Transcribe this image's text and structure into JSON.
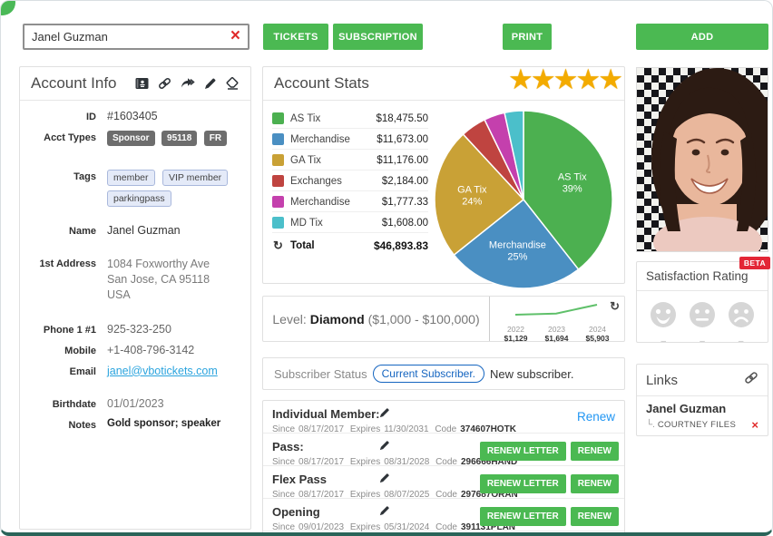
{
  "icons": {
    "star": "★",
    "refresh": "↻",
    "clear": "×",
    "delete": "×",
    "tree": "└."
  },
  "colors": {
    "accent_green": "#4bb952",
    "star_gold": "#f3ab00",
    "beta_red": "#e32636",
    "link_blue": "#2196f3",
    "email_blue": "#2ba4de",
    "pill_blue": "#1565c0",
    "spark_green": "#5fc06a"
  },
  "search": {
    "value": "Janel Guzman"
  },
  "toolbar": {
    "tickets": "TICKETS",
    "subscription": "SUBSCRIPTION",
    "print": "PRINT",
    "add": "ADD"
  },
  "account_info": {
    "title": "Account Info",
    "labels": {
      "id": "ID",
      "acct_types": "Acct Types",
      "tags": "Tags",
      "name": "Name",
      "address": "1st Address",
      "phone": "Phone 1 #1",
      "mobile": "Mobile",
      "email": "Email",
      "birthdate": "Birthdate",
      "notes": "Notes"
    },
    "id": "#1603405",
    "acct_types": [
      "Sponsor",
      "95118",
      "FR"
    ],
    "tags": [
      "member",
      "VIP member",
      "parkingpass"
    ],
    "name": "Janel Guzman",
    "address_lines": [
      "1084 Foxworthy Ave",
      "San Jose, CA 95118",
      "USA"
    ],
    "phone": "925-323-250",
    "mobile": "+1-408-796-3142",
    "email": "janel@vbotickets.com",
    "birthdate": "01/01/2023",
    "notes": "Gold sponsor; speaker"
  },
  "account_stats": {
    "title": "Account Stats",
    "stars": 5
  },
  "chart_data": [
    {
      "type": "pie",
      "title": "Account Stats",
      "labels": [
        "AS Tix",
        "Merchandise",
        "GA Tix",
        "Exchanges",
        "Merchandise",
        "MD Tix"
      ],
      "values": [
        18475.5,
        11673.0,
        11176.0,
        2184.0,
        1777.33,
        1608.0
      ],
      "display_values": [
        "$18,475.50",
        "$11,673.00",
        "$11,176.00",
        "$2,184.00",
        "$1,777.33",
        "$1,608.00"
      ],
      "percent_labels": [
        "39%",
        "25%",
        "24%",
        "",
        "",
        ""
      ],
      "colors": [
        "#4cb050",
        "#4a8fc2",
        "#c9a136",
        "#bf4440",
        "#c440ad",
        "#4bbfca"
      ],
      "total_label": "Total",
      "total": "$46,893.83",
      "legend_position": "left"
    },
    {
      "type": "line",
      "x": [
        "2022",
        "2023",
        "2024"
      ],
      "values": [
        1129,
        1694,
        5903
      ],
      "display_values": [
        "$1,129",
        "$1,694",
        "$5,903"
      ],
      "color": "#5fc06a"
    }
  ],
  "level": {
    "prefix": "Level:",
    "name": "Diamond",
    "range": "($1,000 - $100,000)"
  },
  "subscriber": {
    "label": "Subscriber Status",
    "badge": "Current Subscriber.",
    "note": "New subscriber."
  },
  "memberships": {
    "labels": {
      "since": "Since",
      "expires": "Expires",
      "code": "Code"
    },
    "buttons": {
      "renew_letter": "RENEW LETTER",
      "renew": "RENEW"
    },
    "rows": [
      {
        "name": "Individual Member:",
        "since": "08/17/2017",
        "expires": "11/30/2031",
        "code": "374607HOTK",
        "action": "Renew"
      },
      {
        "name": "Pass:",
        "since": "08/17/2017",
        "expires": "08/31/2028",
        "code": "296666HAND"
      },
      {
        "name": "Flex Pass",
        "since": "08/17/2017",
        "expires": "08/07/2025",
        "code": "297687ORAN"
      },
      {
        "name": "Opening",
        "since": "09/01/2023",
        "expires": "05/31/2024",
        "code": "391131PLAN"
      }
    ]
  },
  "satisfaction": {
    "title": "Satisfaction Rating",
    "beta": "BETA",
    "dash": "–"
  },
  "links": {
    "title": "Links",
    "primary": "Janel Guzman",
    "child": "COURTNEY FILES"
  }
}
